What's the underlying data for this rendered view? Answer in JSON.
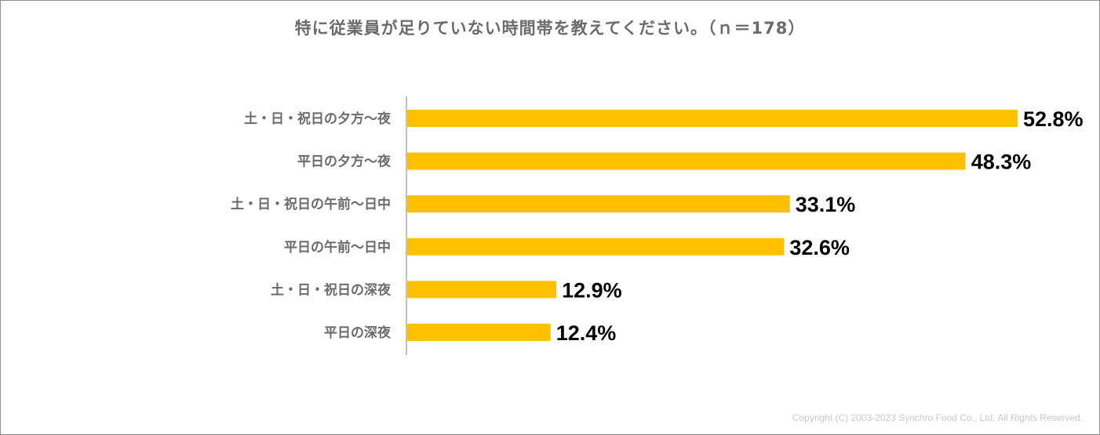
{
  "chart_data": {
    "type": "bar",
    "orientation": "horizontal",
    "title": "特に従業員が足りていない時間帯を教えてください。（ｎ＝178）",
    "categories": [
      "土・日・祝日の夕方～夜",
      "平日の夕方～夜",
      "土・日・祝日の午前～日中",
      "平日の午前～日中",
      "土・日・祝日の深夜",
      "平日の深夜"
    ],
    "values": [
      52.8,
      48.3,
      33.1,
      32.6,
      12.9,
      12.4
    ],
    "value_labels": [
      "52.8%",
      "48.3%",
      "33.1%",
      "32.6%",
      "12.9%",
      "12.4%"
    ],
    "unit": "%",
    "xlim": [
      0,
      55
    ],
    "grid": false,
    "legend": "none",
    "bar_color": "#FFC000"
  },
  "footer": {
    "copyright": "Copyright (C) 2003-2023 Synchro Food Co., Ltd. All Rights Reserved."
  },
  "colors": {
    "bar": "#FFC000",
    "category_text": "#6b6b6b",
    "value_text": "#000000",
    "axis": "#808080"
  }
}
